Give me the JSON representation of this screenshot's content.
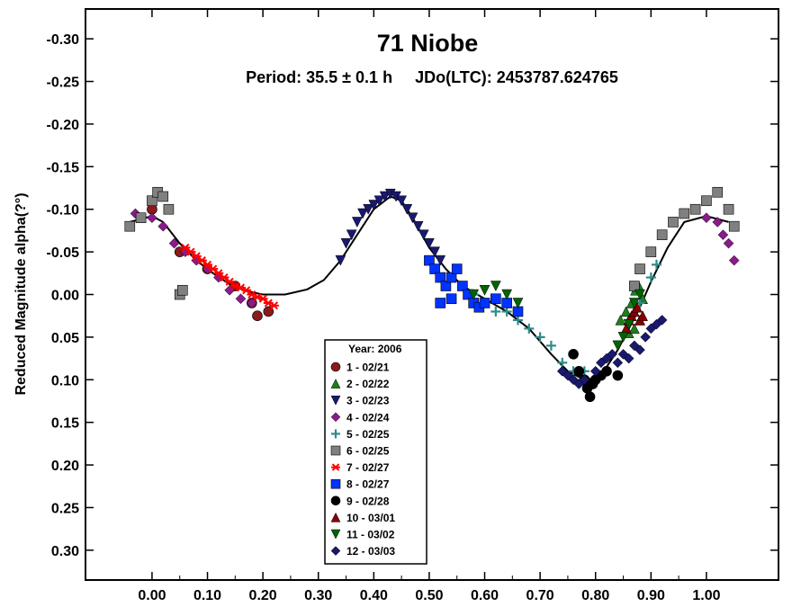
{
  "chart_data": {
    "type": "scatter",
    "title": "71 Niobe",
    "subtitle": "Period: 35.5 ± 0.1 h     JDo(LTC): 2453787.624765",
    "xlabel": "",
    "ylabel": "Reduced Magnitude alpha(?°)",
    "xlim": [
      -0.12,
      1.13
    ],
    "ylim": [
      -0.335,
      0.335
    ],
    "y_inverted": true,
    "xticks": [
      "0.00",
      "0.10",
      "0.20",
      "0.30",
      "0.40",
      "0.50",
      "0.60",
      "0.70",
      "0.80",
      "0.90",
      "1.00"
    ],
    "yticks": [
      "-0.30",
      "-0.25",
      "-0.20",
      "-0.15",
      "-0.10",
      "-0.05",
      "0.00",
      "0.05",
      "0.10",
      "0.15",
      "0.20",
      "0.25",
      "0.30"
    ],
    "legend": {
      "title": "Year: 2006",
      "position": "bottom-center",
      "entries": [
        {
          "label": "1 - 02/21",
          "marker": "circle",
          "color": "#8b1a1a"
        },
        {
          "label": "2 - 02/22",
          "marker": "triangle-up",
          "color": "#1e7d1e"
        },
        {
          "label": "3 - 02/23",
          "marker": "triangle-down",
          "color": "#191970"
        },
        {
          "label": "4 - 02/24",
          "marker": "diamond",
          "color": "#8b1a8b"
        },
        {
          "label": "5 - 02/25",
          "marker": "plus",
          "color": "#2e8b8b"
        },
        {
          "label": "6 - 02/25",
          "marker": "square",
          "color": "#808080"
        },
        {
          "label": "7 - 02/27",
          "marker": "asterisk",
          "color": "#ff0000"
        },
        {
          "label": "8 - 02/27",
          "marker": "square",
          "color": "#0033ff"
        },
        {
          "label": "9 - 02/28",
          "marker": "circle",
          "color": "#000000"
        },
        {
          "label": "10 - 03/01",
          "marker": "triangle-up",
          "color": "#8b0000"
        },
        {
          "label": "11 - 03/02",
          "marker": "triangle-down",
          "color": "#006400"
        },
        {
          "label": "12 - 03/03",
          "marker": "diamond",
          "color": "#191970"
        }
      ]
    },
    "fit_curve": [
      [
        -0.04,
        -0.085
      ],
      [
        0.0,
        -0.092
      ],
      [
        0.02,
        -0.085
      ],
      [
        0.05,
        -0.06
      ],
      [
        0.08,
        -0.04
      ],
      [
        0.11,
        -0.025
      ],
      [
        0.14,
        -0.012
      ],
      [
        0.17,
        -0.004
      ],
      [
        0.2,
        0.0
      ],
      [
        0.24,
        0.0
      ],
      [
        0.28,
        -0.006
      ],
      [
        0.31,
        -0.017
      ],
      [
        0.34,
        -0.04
      ],
      [
        0.37,
        -0.07
      ],
      [
        0.4,
        -0.1
      ],
      [
        0.43,
        -0.115
      ],
      [
        0.45,
        -0.11
      ],
      [
        0.47,
        -0.09
      ],
      [
        0.5,
        -0.055
      ],
      [
        0.53,
        -0.03
      ],
      [
        0.56,
        -0.01
      ],
      [
        0.6,
        0.005
      ],
      [
        0.64,
        0.02
      ],
      [
        0.68,
        0.04
      ],
      [
        0.72,
        0.07
      ],
      [
        0.75,
        0.09
      ],
      [
        0.78,
        0.1
      ],
      [
        0.8,
        0.098
      ],
      [
        0.82,
        0.085
      ],
      [
        0.84,
        0.065
      ],
      [
        0.86,
        0.04
      ],
      [
        0.88,
        0.015
      ],
      [
        0.9,
        -0.015
      ],
      [
        0.93,
        -0.055
      ],
      [
        0.96,
        -0.085
      ],
      [
        1.0,
        -0.092
      ],
      [
        1.04,
        -0.085
      ]
    ],
    "series": [
      {
        "name": "1 - 02/21",
        "points": [
          [
            0.0,
            -0.1
          ],
          [
            0.05,
            -0.05
          ],
          [
            0.1,
            -0.03
          ],
          [
            0.15,
            -0.01
          ],
          [
            0.18,
            0.01
          ],
          [
            0.19,
            0.025
          ],
          [
            0.21,
            0.02
          ]
        ]
      },
      {
        "name": "2 - 02/22",
        "points": [
          [
            0.845,
            0.03
          ],
          [
            0.855,
            0.02
          ],
          [
            0.865,
            0.01
          ],
          [
            0.872,
            -0.005
          ],
          [
            0.878,
            -0.01
          ],
          [
            0.885,
            0.005
          ],
          [
            0.86,
            0.045
          ],
          [
            0.87,
            0.04
          ],
          [
            0.88,
            0.03
          ]
        ]
      },
      {
        "name": "3 - 02/23",
        "points": [
          [
            0.34,
            -0.04
          ],
          [
            0.35,
            -0.06
          ],
          [
            0.36,
            -0.07
          ],
          [
            0.37,
            -0.085
          ],
          [
            0.38,
            -0.095
          ],
          [
            0.39,
            -0.1
          ],
          [
            0.4,
            -0.105
          ],
          [
            0.41,
            -0.11
          ],
          [
            0.42,
            -0.115
          ],
          [
            0.43,
            -0.118
          ],
          [
            0.44,
            -0.115
          ],
          [
            0.45,
            -0.11
          ],
          [
            0.46,
            -0.1
          ],
          [
            0.47,
            -0.09
          ],
          [
            0.48,
            -0.08
          ],
          [
            0.49,
            -0.07
          ],
          [
            0.5,
            -0.06
          ],
          [
            0.51,
            -0.05
          ],
          [
            0.52,
            -0.04
          ]
        ]
      },
      {
        "name": "4 - 02/24",
        "points": [
          [
            -0.03,
            -0.095
          ],
          [
            0.0,
            -0.09
          ],
          [
            0.02,
            -0.08
          ],
          [
            0.04,
            -0.06
          ],
          [
            0.06,
            -0.05
          ],
          [
            0.08,
            -0.04
          ],
          [
            0.1,
            -0.03
          ],
          [
            0.12,
            -0.02
          ],
          [
            0.14,
            -0.005
          ],
          [
            0.16,
            0.005
          ],
          [
            0.18,
            0.01
          ],
          [
            1.0,
            -0.09
          ],
          [
            1.02,
            -0.085
          ],
          [
            1.03,
            -0.07
          ],
          [
            1.04,
            -0.06
          ],
          [
            1.05,
            -0.04
          ]
        ]
      },
      {
        "name": "5 - 02/25",
        "points": [
          [
            0.56,
            -0.01
          ],
          [
            0.58,
            0.0
          ],
          [
            0.6,
            0.01
          ],
          [
            0.62,
            0.02
          ],
          [
            0.64,
            0.02
          ],
          [
            0.66,
            0.03
          ],
          [
            0.68,
            0.04
          ],
          [
            0.7,
            0.05
          ],
          [
            0.72,
            0.06
          ],
          [
            0.74,
            0.08
          ],
          [
            0.76,
            0.09
          ],
          [
            0.78,
            0.09
          ],
          [
            0.86,
            0.03
          ],
          [
            0.88,
            0.01
          ],
          [
            0.9,
            -0.02
          ],
          [
            0.91,
            -0.035
          ]
        ]
      },
      {
        "name": "6 - 02/25",
        "points": [
          [
            -0.04,
            -0.08
          ],
          [
            -0.02,
            -0.09
          ],
          [
            0.0,
            -0.11
          ],
          [
            0.01,
            -0.12
          ],
          [
            0.02,
            -0.115
          ],
          [
            0.03,
            -0.1
          ],
          [
            0.05,
            0.0
          ],
          [
            0.055,
            -0.005
          ],
          [
            0.87,
            -0.01
          ],
          [
            0.88,
            -0.03
          ],
          [
            0.9,
            -0.05
          ],
          [
            0.92,
            -0.07
          ],
          [
            0.94,
            -0.085
          ],
          [
            0.96,
            -0.095
          ],
          [
            0.98,
            -0.1
          ],
          [
            1.0,
            -0.11
          ],
          [
            1.02,
            -0.12
          ],
          [
            1.04,
            -0.1
          ],
          [
            1.05,
            -0.08
          ]
        ]
      },
      {
        "name": "7 - 02/27",
        "points": [
          [
            0.06,
            -0.055
          ],
          [
            0.07,
            -0.05
          ],
          [
            0.08,
            -0.045
          ],
          [
            0.09,
            -0.04
          ],
          [
            0.1,
            -0.035
          ],
          [
            0.11,
            -0.03
          ],
          [
            0.12,
            -0.025
          ],
          [
            0.13,
            -0.02
          ],
          [
            0.14,
            -0.015
          ],
          [
            0.15,
            -0.01
          ],
          [
            0.16,
            -0.008
          ],
          [
            0.17,
            -0.005
          ],
          [
            0.18,
            0.0
          ],
          [
            0.19,
            0.003
          ],
          [
            0.2,
            0.005
          ],
          [
            0.21,
            0.01
          ],
          [
            0.22,
            0.013
          ]
        ]
      },
      {
        "name": "8 - 02/27",
        "points": [
          [
            0.5,
            -0.04
          ],
          [
            0.51,
            -0.03
          ],
          [
            0.52,
            -0.02
          ],
          [
            0.53,
            -0.01
          ],
          [
            0.54,
            -0.02
          ],
          [
            0.55,
            -0.03
          ],
          [
            0.56,
            -0.01
          ],
          [
            0.57,
            0.0
          ],
          [
            0.58,
            0.01
          ],
          [
            0.59,
            0.015
          ],
          [
            0.6,
            0.01
          ],
          [
            0.62,
            0.005
          ],
          [
            0.64,
            0.01
          ],
          [
            0.66,
            0.02
          ],
          [
            0.52,
            0.01
          ],
          [
            0.54,
            0.005
          ]
        ]
      },
      {
        "name": "9 - 02/28",
        "points": [
          [
            0.76,
            0.07
          ],
          [
            0.77,
            0.09
          ],
          [
            0.78,
            0.1
          ],
          [
            0.785,
            0.11
          ],
          [
            0.79,
            0.12
          ],
          [
            0.795,
            0.105
          ],
          [
            0.8,
            0.1
          ],
          [
            0.81,
            0.095
          ],
          [
            0.82,
            0.09
          ],
          [
            0.84,
            0.095
          ]
        ]
      },
      {
        "name": "10 - 03/01",
        "points": [
          [
            0.855,
            0.04
          ],
          [
            0.86,
            0.03
          ],
          [
            0.865,
            0.025
          ],
          [
            0.87,
            0.02
          ],
          [
            0.875,
            0.015
          ],
          [
            0.88,
            0.03
          ],
          [
            0.885,
            0.025
          ]
        ]
      },
      {
        "name": "11 - 03/02",
        "points": [
          [
            0.58,
            0.0
          ],
          [
            0.6,
            -0.005
          ],
          [
            0.62,
            -0.01
          ],
          [
            0.64,
            0.0
          ],
          [
            0.66,
            0.01
          ],
          [
            0.84,
            0.06
          ],
          [
            0.85,
            0.05
          ],
          [
            0.86,
            0.035
          ],
          [
            0.87,
            0.01
          ],
          [
            0.88,
            0.0
          ]
        ]
      },
      {
        "name": "12 - 03/03",
        "points": [
          [
            0.74,
            0.09
          ],
          [
            0.75,
            0.095
          ],
          [
            0.76,
            0.1
          ],
          [
            0.77,
            0.105
          ],
          [
            0.78,
            0.1
          ],
          [
            0.8,
            0.09
          ],
          [
            0.81,
            0.08
          ],
          [
            0.82,
            0.075
          ],
          [
            0.83,
            0.07
          ],
          [
            0.84,
            0.08
          ],
          [
            0.85,
            0.07
          ],
          [
            0.86,
            0.075
          ],
          [
            0.87,
            0.06
          ],
          [
            0.88,
            0.065
          ],
          [
            0.89,
            0.05
          ],
          [
            0.9,
            0.04
          ],
          [
            0.91,
            0.035
          ],
          [
            0.92,
            0.03
          ]
        ]
      }
    ]
  }
}
